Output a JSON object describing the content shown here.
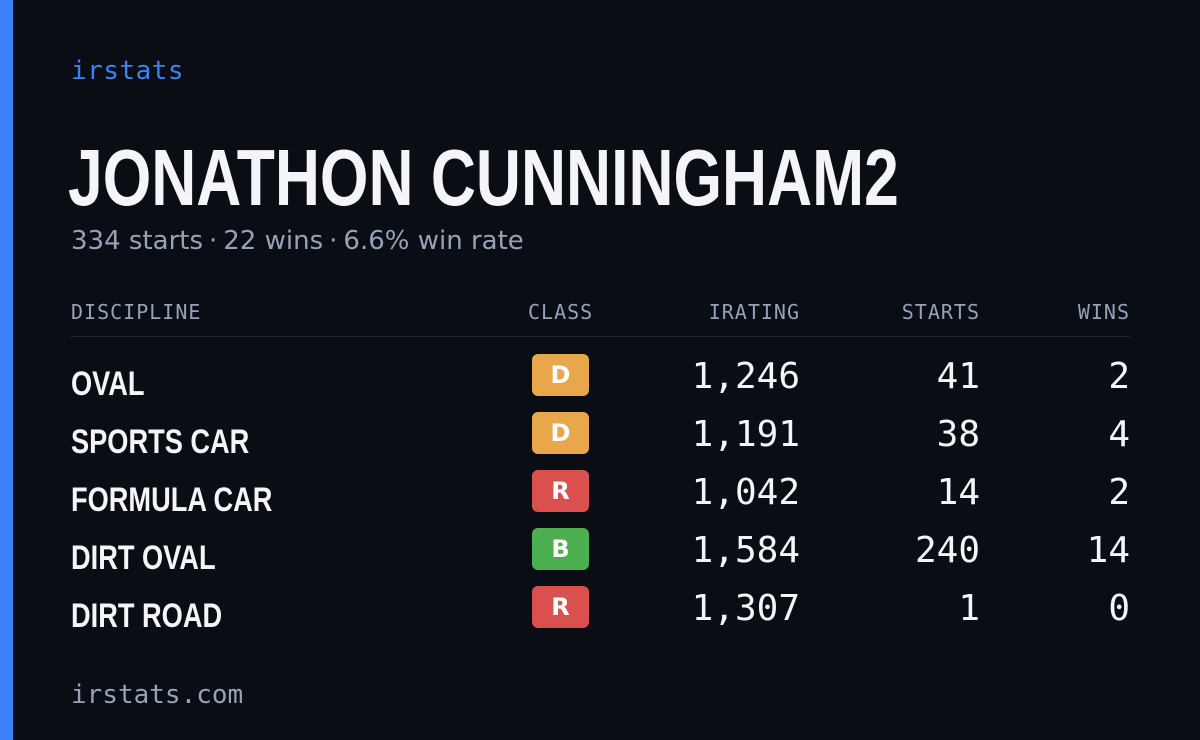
{
  "brand": "irstats",
  "driver": {
    "name": "JONATHON CUNNINGHAM2",
    "starts_text": "334 starts",
    "wins_text": "22 wins",
    "win_rate_text": "6.6% win rate",
    "separator": "·"
  },
  "table": {
    "headers": {
      "discipline": "DISCIPLINE",
      "class": "CLASS",
      "irating": "IRATING",
      "starts": "STARTS",
      "wins": "WINS"
    },
    "rows": [
      {
        "discipline": "OVAL",
        "class": "D",
        "class_color": "#e8a74a",
        "irating": "1,246",
        "starts": "41",
        "wins": "2"
      },
      {
        "discipline": "SPORTS CAR",
        "class": "D",
        "class_color": "#e8a74a",
        "irating": "1,191",
        "starts": "38",
        "wins": "4"
      },
      {
        "discipline": "FORMULA CAR",
        "class": "R",
        "class_color": "#d9504f",
        "irating": "1,042",
        "starts": "14",
        "wins": "2"
      },
      {
        "discipline": "DIRT OVAL",
        "class": "B",
        "class_color": "#4caf50",
        "irating": "1,584",
        "starts": "240",
        "wins": "14"
      },
      {
        "discipline": "DIRT ROAD",
        "class": "R",
        "class_color": "#d9504f",
        "irating": "1,307",
        "starts": "1",
        "wins": "0"
      }
    ]
  },
  "footer": "irstats.com",
  "colors": {
    "accent": "#3b82f6",
    "background": "#0a0d14",
    "muted_text": "#94a3b8"
  }
}
